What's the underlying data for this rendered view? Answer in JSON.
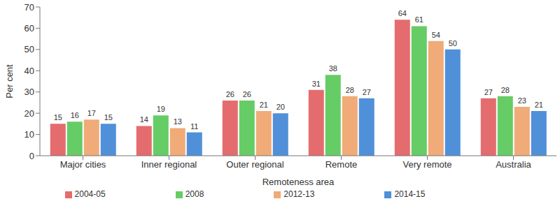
{
  "chart_data": {
    "type": "bar",
    "x_label": "Remoteness area",
    "y_label": "Per cent",
    "categories": [
      "Major cities",
      "Inner regional",
      "Outer regional",
      "Remote",
      "Very remote",
      "Australia"
    ],
    "series": [
      {
        "name": "2004-05",
        "color": "#e46c6e",
        "values": [
          15,
          14,
          26,
          31,
          64,
          27
        ]
      },
      {
        "name": "2008",
        "color": "#66cc66",
        "values": [
          16,
          19,
          26,
          38,
          61,
          28
        ]
      },
      {
        "name": "2012-13",
        "color": "#f0ab78",
        "values": [
          17,
          13,
          21,
          28,
          54,
          23
        ]
      },
      {
        "name": "2014-15",
        "color": "#4f90d9",
        "values": [
          15,
          11,
          20,
          27,
          50,
          21
        ]
      }
    ],
    "ylim": [
      0,
      70
    ],
    "yticks": [
      0,
      10,
      20,
      30,
      40,
      50,
      60,
      70
    ],
    "grid": false,
    "legend": "bottom",
    "data_labels": true
  }
}
